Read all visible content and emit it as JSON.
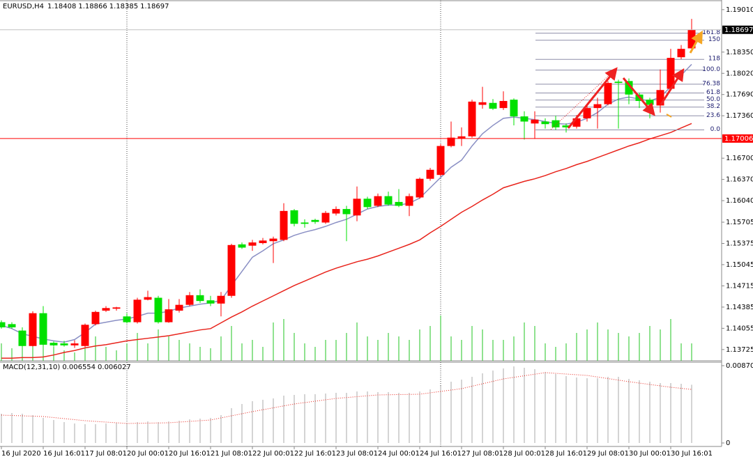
{
  "chart_data": [
    {
      "type": "candlestick",
      "title": "EURUSD,H4",
      "categories": [
        "16 Jul 2020",
        null,
        null,
        null,
        "16 Jul 16:01",
        null,
        null,
        null,
        "17 Jul 08:01",
        null,
        null,
        null,
        "20 Jul 00:01",
        null,
        null,
        null,
        "20 Jul 16:01",
        null,
        null,
        null,
        "21 Jul 08:01",
        null,
        null,
        null,
        "22 Jul 00:01",
        null,
        null,
        null,
        "22 Jul 16:01",
        null,
        null,
        null,
        "23 Jul 08:01",
        null,
        null,
        null,
        "24 Jul 00:01",
        null,
        null,
        null,
        "24 Jul 16:01",
        null,
        null,
        null,
        "27 Jul 08:01",
        null,
        null,
        null,
        "28 Jul 00:01",
        null,
        null,
        null,
        "28 Jul 16:01",
        null,
        null,
        null,
        "29 Jul 08:01",
        null,
        null,
        null,
        "30 Jul 00:01",
        null,
        null,
        null,
        "30 Jul 16:01",
        null,
        null
      ],
      "open": [
        1.1415,
        1.1412,
        1.1402,
        1.1378,
        1.1429,
        1.1383,
        1.1382,
        1.1379,
        1.1378,
        1.1412,
        1.1433,
        1.1436,
        1.1424,
        1.1415,
        1.145,
        1.1453,
        1.1415,
        1.1433,
        1.1442,
        1.1457,
        1.1449,
        1.1444,
        1.1456,
        1.1536,
        1.1534,
        1.1538,
        1.1541,
        1.1543,
        1.1589,
        1.157,
        1.1574,
        1.157,
        1.1584,
        1.1591,
        1.1581,
        1.1607,
        1.1596,
        1.1611,
        1.1602,
        1.1596,
        1.1609,
        1.1638,
        1.1644,
        1.1689,
        1.1701,
        1.1704,
        1.1753,
        1.1756,
        1.1748,
        1.1761,
        1.1735,
        1.1724,
        1.1727,
        1.1729,
        1.1721,
        1.1719,
        1.1732,
        1.1748,
        1.1754,
        1.1789,
        1.179,
        1.1769,
        1.1761,
        1.1752,
        1.1778,
        1.1827,
        1.18408
      ],
      "high": [
        1.1418,
        1.1415,
        1.1407,
        1.1432,
        1.144,
        1.1385,
        1.1386,
        1.1387,
        1.1413,
        1.1433,
        1.144,
        1.1439,
        1.1429,
        1.1453,
        1.1464,
        1.1456,
        1.1451,
        1.1451,
        1.1462,
        1.1466,
        1.1456,
        1.1462,
        1.1537,
        1.1539,
        1.1543,
        1.1546,
        1.1548,
        1.16,
        1.1591,
        1.1575,
        1.1576,
        1.1588,
        1.1595,
        1.1596,
        1.1626,
        1.161,
        1.1615,
        1.1618,
        1.1622,
        1.1615,
        1.164,
        1.1655,
        1.1692,
        1.1727,
        1.1718,
        1.1761,
        1.1781,
        1.1762,
        1.1774,
        1.1763,
        1.1743,
        1.1743,
        1.1732,
        1.1736,
        1.1724,
        1.1737,
        1.1754,
        1.1764,
        1.179,
        1.1792,
        1.1794,
        1.1772,
        1.1764,
        1.1808,
        1.184,
        1.1846,
        1.18866
      ],
      "low": [
        1.1405,
        1.1405,
        1.1376,
        1.1377,
        1.1378,
        1.1377,
        1.1377,
        1.1375,
        1.1376,
        1.141,
        1.1431,
        1.1433,
        1.1413,
        1.1413,
        1.1449,
        1.1413,
        1.1414,
        1.143,
        1.144,
        1.1445,
        1.144,
        1.1424,
        1.1453,
        1.1529,
        1.1526,
        1.1536,
        1.1507,
        1.1541,
        1.1564,
        1.1562,
        1.1568,
        1.1568,
        1.1581,
        1.1541,
        1.1572,
        1.1591,
        1.1594,
        1.1596,
        1.1594,
        1.158,
        1.1607,
        1.1635,
        1.1642,
        1.1687,
        1.1689,
        1.1702,
        1.1747,
        1.1745,
        1.1745,
        1.1721,
        1.1699,
        1.17,
        1.1716,
        1.1714,
        1.171,
        1.1716,
        1.1727,
        1.1716,
        1.1752,
        1.1716,
        1.1754,
        1.1748,
        1.1732,
        1.1741,
        1.1775,
        1.1824,
        1.18385
      ],
      "close": [
        1.1407,
        1.1407,
        1.1378,
        1.1429,
        1.138,
        1.1379,
        1.1379,
        1.1382,
        1.1411,
        1.1431,
        1.1437,
        1.1438,
        1.1415,
        1.145,
        1.1454,
        1.1415,
        1.1435,
        1.1442,
        1.1457,
        1.1448,
        1.1444,
        1.1456,
        1.1535,
        1.1531,
        1.1539,
        1.1542,
        1.1545,
        1.1588,
        1.1568,
        1.1568,
        1.1571,
        1.1585,
        1.1591,
        1.1583,
        1.1607,
        1.1594,
        1.1611,
        1.1598,
        1.1596,
        1.1611,
        1.1638,
        1.1652,
        1.1689,
        1.1702,
        1.1704,
        1.1758,
        1.1757,
        1.1747,
        1.1759,
        1.1735,
        1.1727,
        1.173,
        1.1723,
        1.1718,
        1.1718,
        1.1732,
        1.1748,
        1.1754,
        1.1787,
        1.1787,
        1.1769,
        1.1759,
        1.1753,
        1.1776,
        1.1826,
        1.184,
        1.18697
      ],
      "up_color": "#ff0000",
      "down_color": "#00e000",
      "moving_averages": [
        {
          "color": "#8a8fc4",
          "values": [
            1.141,
            1.1405,
            1.1397,
            1.1393,
            1.1389,
            1.1386,
            1.1384,
            1.1388,
            1.1399,
            1.1412,
            1.1415,
            1.1418,
            1.142,
            1.1424,
            1.1429,
            1.1429,
            1.1432,
            1.1437,
            1.144,
            1.1443,
            1.1445,
            1.1449,
            1.1472,
            1.1494,
            1.1516,
            1.1526,
            1.1537,
            1.1543,
            1.155,
            1.1555,
            1.1559,
            1.1564,
            1.157,
            1.1575,
            1.1583,
            1.1591,
            1.1595,
            1.1597,
            1.1597,
            1.16,
            1.1608,
            1.1624,
            1.164,
            1.1656,
            1.1667,
            1.1689,
            1.1708,
            1.1721,
            1.1732,
            1.1734,
            1.1732,
            1.173,
            1.1727,
            1.1724,
            1.1723,
            1.1726,
            1.1732,
            1.1741,
            1.1754,
            1.1762,
            1.1765,
            1.1762,
            1.1759,
            1.1765,
            1.1781,
            1.1799,
            1.1816
          ]
        },
        {
          "color": "#e8231b",
          "values": [
            1.1359,
            1.1359,
            1.136,
            1.136,
            1.1361,
            1.1364,
            1.1368,
            1.1371,
            1.1375,
            1.1378,
            1.138,
            1.1383,
            1.1386,
            1.1388,
            1.139,
            1.1392,
            1.1394,
            1.1397,
            1.14,
            1.1403,
            1.1405,
            1.1414,
            1.1423,
            1.1431,
            1.144,
            1.1448,
            1.1456,
            1.1464,
            1.1472,
            1.1479,
            1.1486,
            1.1493,
            1.1499,
            1.1504,
            1.1509,
            1.1513,
            1.1518,
            1.1524,
            1.153,
            1.1536,
            1.1543,
            1.1554,
            1.1564,
            1.1575,
            1.1586,
            1.1595,
            1.1605,
            1.1614,
            1.1624,
            1.1629,
            1.1634,
            1.1638,
            1.1643,
            1.1649,
            1.1654,
            1.166,
            1.1665,
            1.1671,
            1.1677,
            1.1683,
            1.1689,
            1.1694,
            1.17,
            1.1705,
            1.171,
            1.1717,
            1.1724
          ]
        }
      ],
      "volumes": [
        25,
        18,
        30,
        55,
        40,
        20,
        15,
        12,
        30,
        35,
        20,
        15,
        25,
        40,
        25,
        45,
        35,
        30,
        25,
        20,
        18,
        35,
        50,
        25,
        30,
        20,
        55,
        60,
        40,
        25,
        20,
        30,
        30,
        40,
        55,
        35,
        30,
        40,
        35,
        30,
        45,
        50,
        65,
        35,
        30,
        50,
        45,
        30,
        30,
        35,
        55,
        50,
        25,
        20,
        25,
        40,
        45,
        55,
        45,
        40,
        35,
        40,
        50,
        45,
        60,
        25,
        25
      ],
      "volume_color": "#22c422",
      "vlim": [
        0,
        100
      ],
      "ylim": [
        1.1355,
        1.1916
      ],
      "yticks": [
        {
          "value": 1.1901,
          "label": "1.19010"
        },
        {
          "value": 1.1835,
          "label": "1.18350"
        },
        {
          "value": 1.1802,
          "label": "1.18020"
        },
        {
          "value": 1.1769,
          "label": "1.17690"
        },
        {
          "value": 1.1736,
          "label": "1.17360"
        },
        {
          "value": 1.167,
          "label": "1.16700"
        },
        {
          "value": 1.1637,
          "label": "1.16370"
        },
        {
          "value": 1.1604,
          "label": "1.16040"
        },
        1.15705,
        1.15375,
        1.15045,
        1.14715,
        1.14385,
        1.14055,
        1.13725
      ],
      "hlines": [
        {
          "value": 1.17006,
          "color": "#ff0000"
        }
      ],
      "fibonacci": {
        "low": 1.1714,
        "high": 1.1807,
        "color": "#8e8ea8",
        "label_color": "#1a1a6e",
        "levels": [
          {
            "value": 0,
            "label": "0.0"
          },
          23.6,
          38.2,
          {
            "value": 50,
            "label": "50.0"
          },
          61.8,
          76.38,
          {
            "value": 100,
            "label": "100.0"
          },
          118,
          150,
          161.8
        ]
      }
    },
    {
      "type": "macd",
      "title": "MACD(12,31,10)",
      "values": [
        0.003293,
        0.003371,
        0.003293,
        0.003136,
        0.002822,
        0.002587,
        0.002352,
        0.002195,
        0.002117,
        0.002117,
        0.002195,
        0.002274,
        0.002195,
        0.002352,
        0.00243,
        0.002352,
        0.00243,
        0.002509,
        0.002666,
        0.002744,
        0.002822,
        0.003136,
        0.00392,
        0.00439,
        0.004704,
        0.004861,
        0.005018,
        0.005331,
        0.00541,
        0.005488,
        0.005488,
        0.005566,
        0.005645,
        0.005645,
        0.005802,
        0.005802,
        0.005723,
        0.005723,
        0.005645,
        0.005645,
        0.005802,
        0.006037,
        0.006429,
        0.006899,
        0.007134,
        0.007448,
        0.00784,
        0.008154,
        0.008389,
        0.008624,
        0.008467,
        0.00831,
        0.007997,
        0.007762,
        0.007526,
        0.00737,
        0.007291,
        0.007291,
        0.007448,
        0.007448,
        0.007213,
        0.007056,
        0.006899,
        0.006742,
        0.006742,
        0.006664,
        0.006554
      ],
      "signal": [
        0.003136,
        0.003097,
        0.003058,
        0.003018,
        0.002979,
        0.002862,
        0.002744,
        0.002626,
        0.002509,
        0.00243,
        0.002352,
        0.002274,
        0.002195,
        0.002215,
        0.002234,
        0.002254,
        0.002274,
        0.002352,
        0.00243,
        0.002509,
        0.002587,
        0.002822,
        0.003058,
        0.003293,
        0.003528,
        0.003744,
        0.003959,
        0.004175,
        0.00439,
        0.004547,
        0.004704,
        0.004861,
        0.005018,
        0.005116,
        0.005214,
        0.005312,
        0.00541,
        0.005429,
        0.005449,
        0.005468,
        0.005488,
        0.005645,
        0.005802,
        0.005958,
        0.006115,
        0.00639,
        0.006664,
        0.006938,
        0.007213,
        0.007389,
        0.007566,
        0.007742,
        0.007918,
        0.00784,
        0.007762,
        0.007683,
        0.007605,
        0.007428,
        0.007252,
        0.007076,
        0.006899,
        0.006742,
        0.006586,
        0.006429,
        0.006272,
        0.006154,
        0.006027
      ],
      "color": "#a8a8a8",
      "signal_color": "#e8231b",
      "ylim": [
        -0.000392,
        0.009173
      ],
      "yticks": [
        0.008702,
        0
      ]
    }
  ]
}
